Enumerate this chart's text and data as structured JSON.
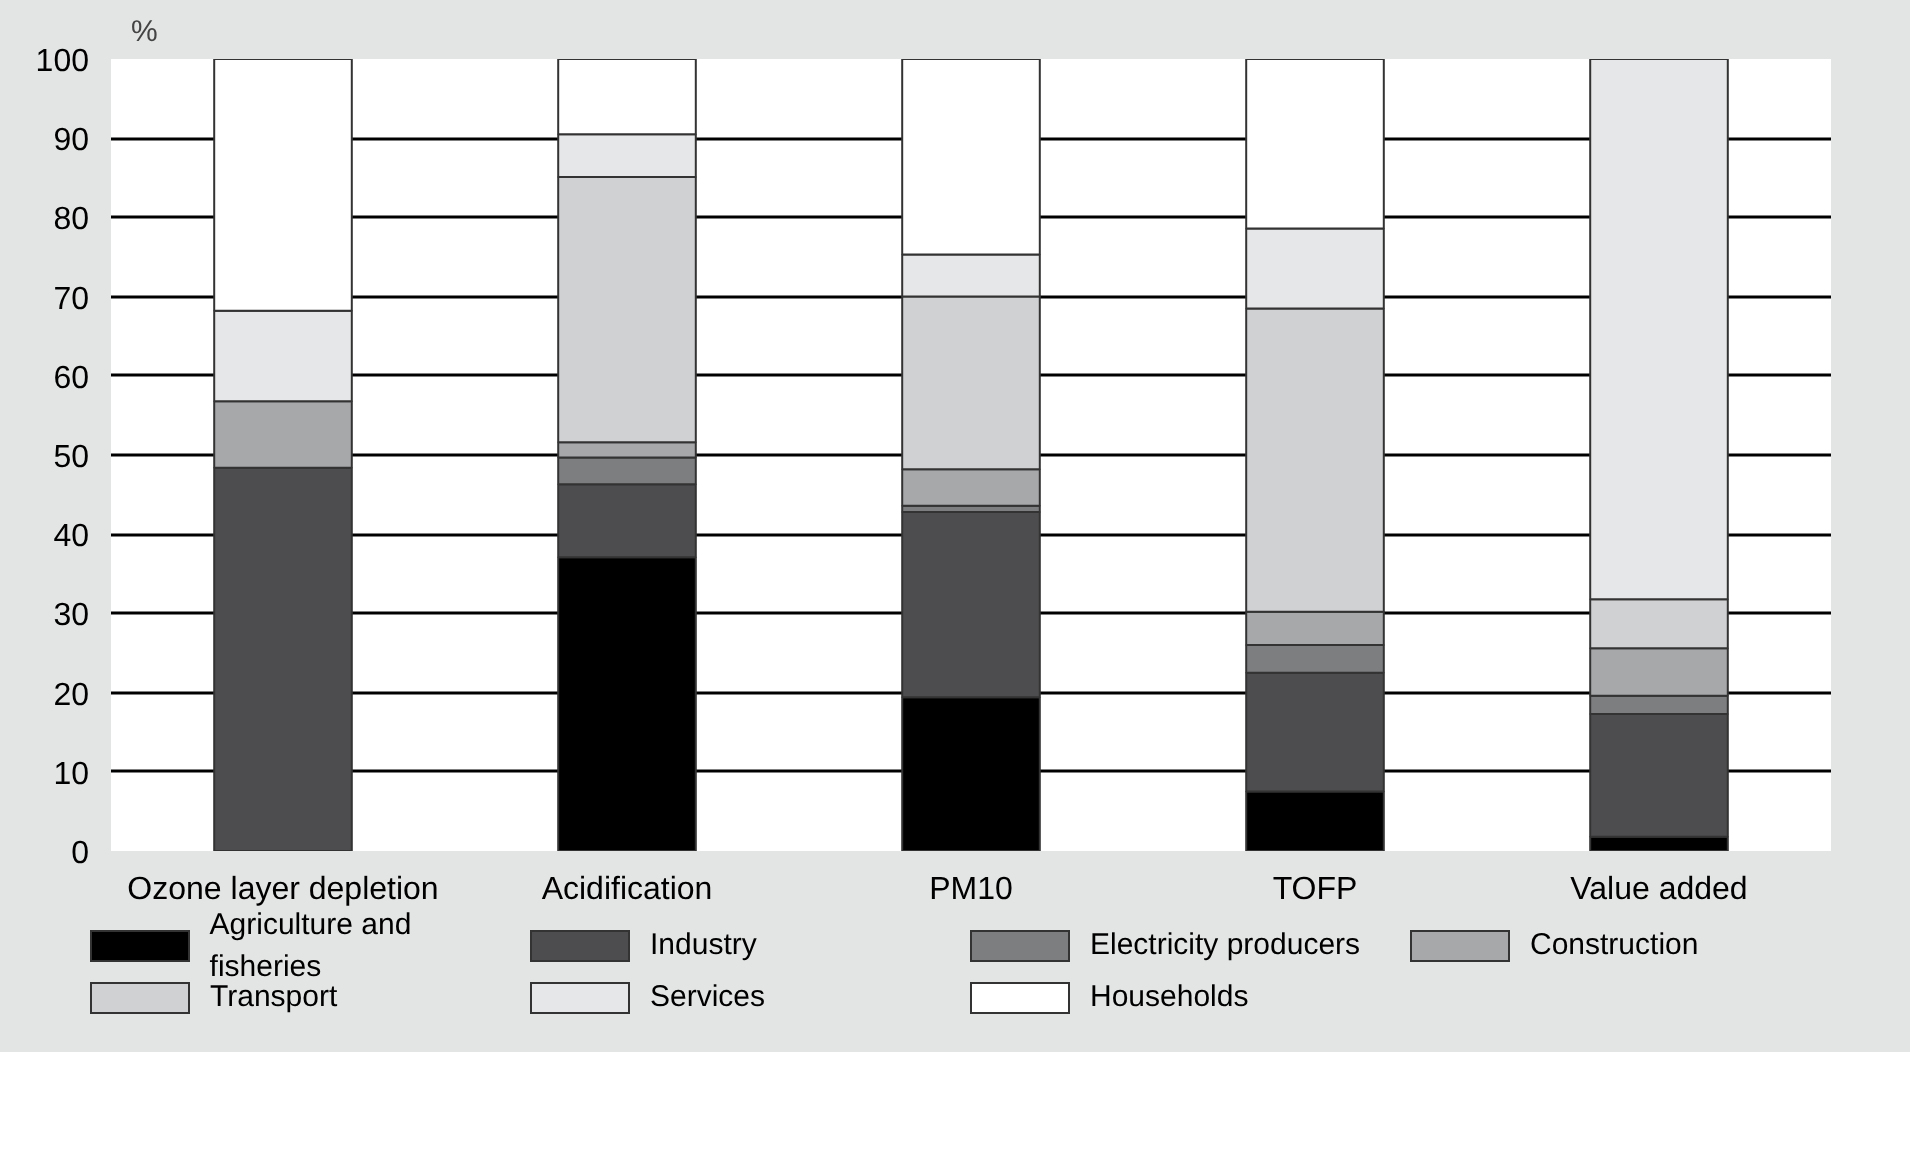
{
  "chart_data": {
    "type": "bar",
    "stacked": true,
    "ylabel": "%",
    "categories": [
      "Ozone layer depletion",
      "Acidification",
      "PM10",
      "TOFP",
      "Value added"
    ],
    "series": [
      {
        "name": "Agriculture and fisheries",
        "color": "#000000",
        "values": [
          0,
          37.1,
          19.4,
          7.5,
          1.8
        ]
      },
      {
        "name": "Industry",
        "color": "#4d4d4f",
        "values": [
          48.4,
          9.2,
          23.4,
          15.0,
          15.5
        ]
      },
      {
        "name": "Electricity producers",
        "color": "#7d7e80",
        "values": [
          0,
          3.4,
          0.8,
          3.5,
          2.3
        ]
      },
      {
        "name": "Construction",
        "color": "#a7a8aa",
        "values": [
          8.4,
          1.9,
          4.6,
          4.2,
          6.0
        ]
      },
      {
        "name": "Transport",
        "color": "#d0d1d3",
        "values": [
          0,
          33.5,
          21.8,
          38.3,
          6.2
        ]
      },
      {
        "name": "Services",
        "color": "#e6e7e8",
        "values": [
          11.4,
          5.4,
          5.3,
          10.1,
          68.2
        ]
      },
      {
        "name": "Households",
        "color": "#ffffff",
        "values": [
          31.8,
          9.5,
          24.7,
          21.4,
          0
        ]
      }
    ],
    "ylim": [
      0,
      100
    ],
    "yticks": [
      0,
      10,
      20,
      30,
      40,
      50,
      60,
      70,
      80,
      90,
      100
    ],
    "grid": "y",
    "legend": "bottom"
  }
}
